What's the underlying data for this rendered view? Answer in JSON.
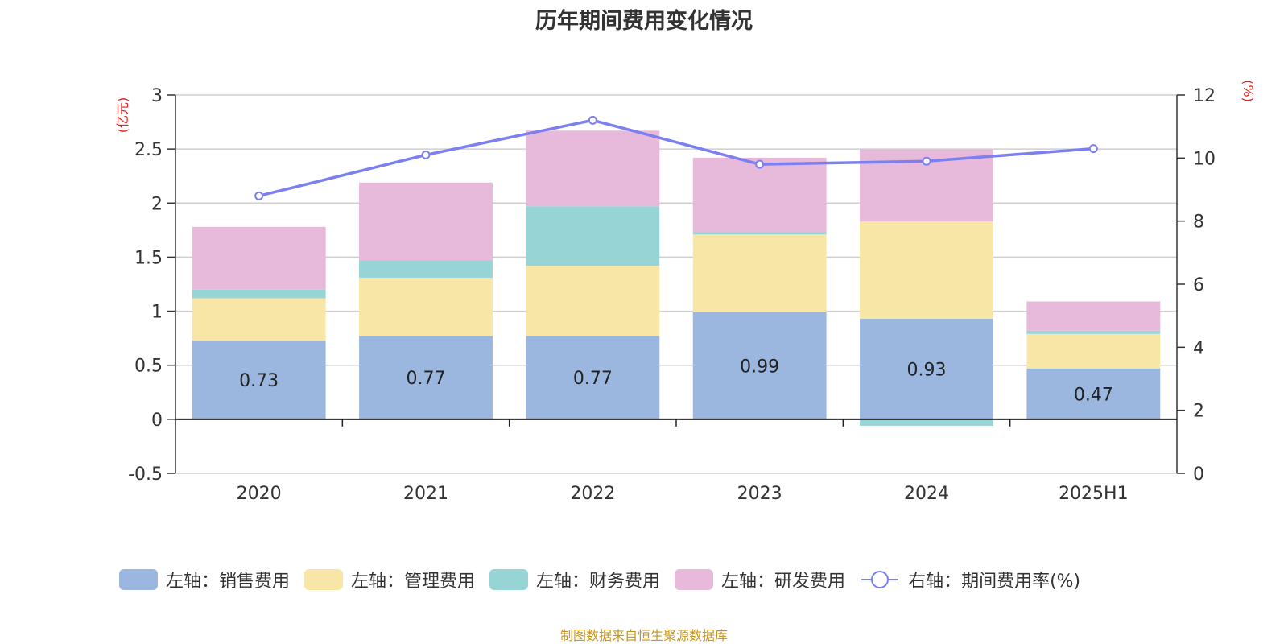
{
  "chart_data": {
    "type": "bar",
    "title": "历年期间费用变化情况",
    "categories": [
      "2020",
      "2021",
      "2022",
      "2023",
      "2024",
      "2025H1"
    ],
    "left_axis": {
      "unit_label": "(亿元)",
      "ylim": [
        -0.5,
        3
      ],
      "ticks": [
        "-0.5",
        "0",
        "0.5",
        "1",
        "1.5",
        "2",
        "2.5",
        "3"
      ]
    },
    "right_axis": {
      "unit_label": "(%)",
      "ylim": [
        0,
        12
      ],
      "ticks": [
        "0",
        "2",
        "4",
        "6",
        "8",
        "10",
        "12"
      ]
    },
    "series": [
      {
        "name": "左轴：销售费用",
        "type": "bar",
        "axis": "left",
        "color": "#9bb7e0",
        "values": [
          0.73,
          0.77,
          0.77,
          0.99,
          0.93,
          0.47
        ],
        "labels": [
          "0.73",
          "0.77",
          "0.77",
          "0.99",
          "0.93",
          "0.47"
        ]
      },
      {
        "name": "左轴：管理费用",
        "type": "bar",
        "axis": "left",
        "color": "#f8e6a6",
        "values": [
          0.39,
          0.54,
          0.65,
          0.72,
          0.9,
          0.32
        ]
      },
      {
        "name": "左轴：财务费用",
        "type": "bar",
        "axis": "left",
        "color": "#97d4d6",
        "values": [
          0.08,
          0.16,
          0.55,
          0.02,
          -0.06,
          0.03
        ]
      },
      {
        "name": "左轴：研发费用",
        "type": "bar",
        "axis": "left",
        "color": "#e7b9da",
        "values": [
          0.58,
          0.72,
          0.7,
          0.69,
          0.67,
          0.27
        ]
      },
      {
        "name": "右轴：期间费用率(%)",
        "type": "line",
        "axis": "right",
        "color": "#7b7ff0",
        "values": [
          8.8,
          10.1,
          11.2,
          9.8,
          9.9,
          10.3
        ]
      }
    ],
    "grid": true,
    "legend_position": "bottom"
  },
  "source_note": "制图数据来自恒生聚源数据库"
}
